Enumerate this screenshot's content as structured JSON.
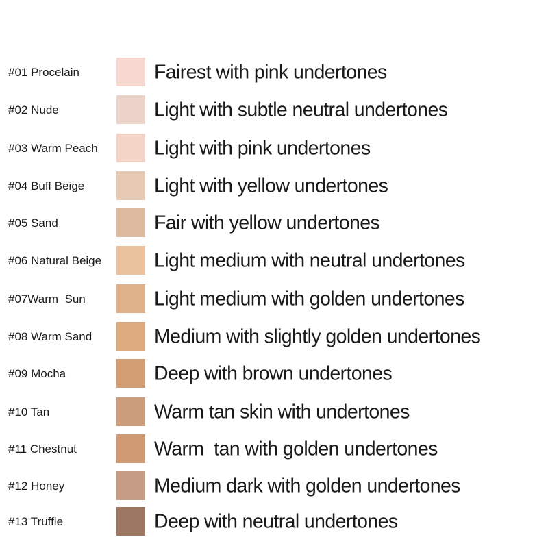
{
  "shades": [
    {
      "label": "#01 Procelain",
      "description": "Fairest with pink undertones",
      "color": "#f7d8d0"
    },
    {
      "label": "#02 Nude",
      "description": "Light with subtle neutral undertones",
      "color": "#ecd3ca"
    },
    {
      "label": "#03 Warm Peach",
      "description": "Light with pink undertones",
      "color": "#f4d3c7"
    },
    {
      "label": "#04 Buff Beige",
      "description": "Light with yellow undertones",
      "color": "#e6cab3"
    },
    {
      "label": "#05 Sand",
      "description": "Fair with yellow undertones",
      "color": "#dcbb9f"
    },
    {
      "label": "#06 Natural Beige",
      "description": "Light medium with neutral undertones",
      "color": "#ebc29e"
    },
    {
      "label": "#07Warm  Sun",
      "description": "Light medium with golden undertones",
      "color": "#deb18a"
    },
    {
      "label": "#08 Warm Sand",
      "description": "Medium with slightly golden undertones",
      "color": "#ddab80"
    },
    {
      "label": "#09 Mocha",
      "description": "Deep with brown undertones",
      "color": "#d29d72"
    },
    {
      "label": "#10 Tan",
      "description": "Warm tan skin with undertones",
      "color": "#cb9d7d"
    },
    {
      "label": "#11 Chestnut",
      "description": "Warm  tan with golden undertones",
      "color": "#cf9a73"
    },
    {
      "label": "#12 Honey",
      "description": "Medium dark with golden undertones",
      "color": "#c59c85"
    },
    {
      "label": "#13 Truffle",
      "description": "Deep with neutral undertones",
      "color": "#9d7762"
    }
  ]
}
